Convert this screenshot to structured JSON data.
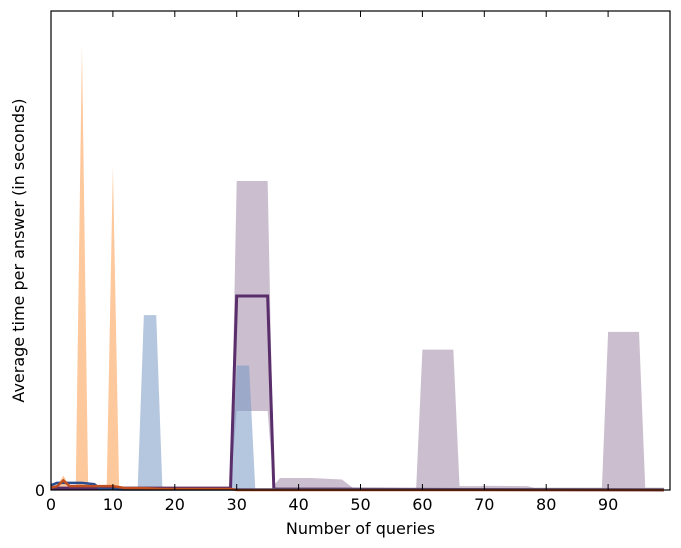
{
  "chart_data": {
    "type": "area",
    "title": "",
    "xlabel": "Number of queries",
    "ylabel": "Average time per answer (in seconds)",
    "xlim": [
      0,
      100
    ],
    "ylim": [
      0,
      1.0
    ],
    "x_ticks": [
      0,
      10,
      20,
      30,
      40,
      50,
      60,
      70,
      80,
      90
    ],
    "y_ticks": [
      0
    ],
    "y_tick_labels": [
      "0"
    ],
    "grid": false,
    "legend": "none",
    "bands": [
      {
        "color": "#a08aa8",
        "opacity": 0.55,
        "x": [
          0,
          29,
          30,
          35,
          36,
          37,
          42,
          47,
          49,
          58,
          59,
          60,
          65,
          66,
          69,
          70,
          77,
          78,
          89,
          90,
          95,
          96,
          99
        ],
        "upper": [
          0.005,
          0.005,
          0.645,
          0.645,
          0.01,
          0.025,
          0.025,
          0.022,
          0.002,
          0.002,
          0.005,
          0.293,
          0.293,
          0.008,
          0.008,
          0.009,
          0.008,
          0.005,
          0.005,
          0.33,
          0.33,
          0.005,
          0.005
        ],
        "lower": [
          0.0,
          0.0,
          0.165,
          0.165,
          0.0,
          0.0,
          0.0,
          0.0,
          0.0,
          0.0,
          0.0,
          0.0,
          0.0,
          0.0,
          0.0,
          0.0,
          0.0,
          0.0,
          0.0,
          0.0,
          0.0,
          0.0,
          0.0
        ]
      },
      {
        "color": "#7898c4",
        "opacity": 0.55,
        "x": [
          0,
          14,
          15,
          17,
          18,
          29,
          30,
          32,
          33,
          99
        ],
        "upper": [
          0.002,
          0.002,
          0.365,
          0.365,
          0.002,
          0.002,
          0.26,
          0.26,
          0.002,
          0.002
        ],
        "lower": [
          0.0,
          0.0,
          0.0,
          0.0,
          0.0,
          0.0,
          0.0,
          0.0,
          0.0,
          0.0
        ]
      },
      {
        "color": "#fb9a4a",
        "opacity": 0.55,
        "x": [
          0,
          1,
          2,
          3,
          4,
          5,
          6,
          9,
          10,
          11,
          12,
          99
        ],
        "upper": [
          0.005,
          0.01,
          0.03,
          0.008,
          0.006,
          0.925,
          0.006,
          0.006,
          0.675,
          0.006,
          0.003,
          0.002
        ],
        "lower": [
          0.0,
          0.0,
          0.0,
          0.0,
          0.0,
          0.0,
          0.0,
          0.0,
          0.0,
          0.0,
          0.0,
          0.0
        ]
      }
    ],
    "series": [
      {
        "color": "#5a2e6a",
        "width": 3,
        "x": [
          0,
          29,
          30,
          35,
          36,
          99
        ],
        "values": [
          0.004,
          0.004,
          0.405,
          0.405,
          0.002,
          0.0
        ]
      },
      {
        "color": "#2a4d8f",
        "width": 2.5,
        "x": [
          0,
          1,
          2,
          5,
          7,
          8,
          12,
          99
        ],
        "values": [
          0.01,
          0.015,
          0.015,
          0.015,
          0.012,
          0.002,
          0.001,
          0.001
        ]
      },
      {
        "color": "#c14f20",
        "width": 2.5,
        "x": [
          0,
          1,
          2,
          3,
          4,
          6,
          10,
          12,
          15,
          18,
          29,
          30,
          99
        ],
        "values": [
          0.005,
          0.008,
          0.02,
          0.008,
          0.008,
          0.008,
          0.008,
          0.004,
          0.004,
          0.002,
          0.002,
          0.0,
          0.0
        ]
      }
    ]
  }
}
